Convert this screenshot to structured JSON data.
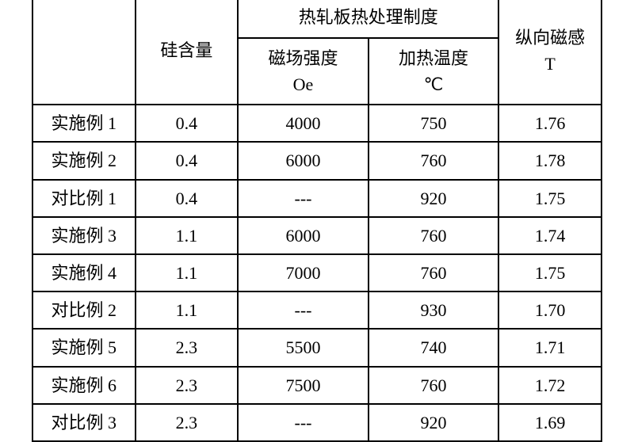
{
  "table": {
    "columns": [
      {
        "key": "label",
        "header": ""
      },
      {
        "key": "si",
        "header": "硅含量"
      },
      {
        "key": "mag",
        "header_line1": "磁场强度",
        "header_line2": "Oe",
        "group_header": "热轧板热处理制度"
      },
      {
        "key": "temp",
        "header_line1": "加热温度",
        "header_line2": "℃"
      },
      {
        "key": "result",
        "header_line1": "纵向磁感",
        "header_line2": "T"
      }
    ],
    "group_header": "热轧板热处理制度",
    "header_si": "硅含量",
    "header_mag_l1": "磁场强度",
    "header_mag_l2": "Oe",
    "header_temp_l1": "加热温度",
    "header_temp_l2": "℃",
    "header_result_l1": "纵向磁感",
    "header_result_l2": "T",
    "rows": [
      {
        "label": "实施例 1",
        "si": "0.4",
        "mag": "4000",
        "temp": "750",
        "result": "1.76"
      },
      {
        "label": "实施例 2",
        "si": "0.4",
        "mag": "6000",
        "temp": "760",
        "result": "1.78"
      },
      {
        "label": "对比例 1",
        "si": "0.4",
        "mag": "---",
        "temp": "920",
        "result": "1.75"
      },
      {
        "label": "实施例 3",
        "si": "1.1",
        "mag": "6000",
        "temp": "760",
        "result": "1.74"
      },
      {
        "label": "实施例 4",
        "si": "1.1",
        "mag": "7000",
        "temp": "760",
        "result": "1.75"
      },
      {
        "label": "对比例 2",
        "si": "1.1",
        "mag": "---",
        "temp": "930",
        "result": "1.70"
      },
      {
        "label": "实施例 5",
        "si": "2.3",
        "mag": "5500",
        "temp": "740",
        "result": "1.71"
      },
      {
        "label": "实施例 6",
        "si": "2.3",
        "mag": "7500",
        "temp": "760",
        "result": "1.72"
      },
      {
        "label": "对比例 3",
        "si": "2.3",
        "mag": "---",
        "temp": "920",
        "result": "1.69"
      }
    ],
    "styling": {
      "border_color": "#000000",
      "border_width": 2,
      "font_family": "SimSun",
      "font_size_pt": 16,
      "background_color": "#ffffff",
      "text_align": "center"
    }
  }
}
